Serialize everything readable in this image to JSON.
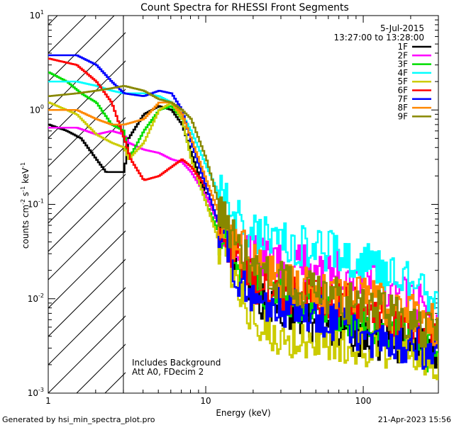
{
  "chart_data": {
    "type": "line",
    "title": "Count Spectra for RHESSI Front Segments",
    "xlabel": "Energy (keV)",
    "ylabel_main": "counts cm",
    "ylabel_sup1": "-2",
    "ylabel_mid": " s",
    "ylabel_sup2": "-1",
    "ylabel_mid2": " keV",
    "ylabel_sup3": "-1",
    "x_scale": "log",
    "y_scale": "log",
    "xlim": [
      1,
      300
    ],
    "ylim": [
      0.001,
      10
    ],
    "x_ticks": [
      {
        "value": 1,
        "label": "1"
      },
      {
        "value": 10,
        "label": "10"
      },
      {
        "value": 100,
        "label": "100"
      }
    ],
    "y_ticks": [
      {
        "value": 10,
        "base": "10",
        "exp": "1"
      },
      {
        "value": 1,
        "base": "10",
        "exp": "0"
      },
      {
        "value": 0.1,
        "base": "10",
        "exp": "-1"
      },
      {
        "value": 0.01,
        "base": "10",
        "exp": "-2"
      },
      {
        "value": 0.001,
        "base": "10",
        "exp": "-3"
      }
    ],
    "date": "5-Jul-2015",
    "time_range": "13:27:00 to 13:28:00",
    "annotation_line1": "Includes Background",
    "annotation_line2": "Att A0, FDecim 2",
    "footer_left": "Generated by hsi_min_spectra_plot.pro",
    "footer_right": "21-Apr-2023 15:56",
    "shaded_region": {
      "from": 1,
      "to": 3,
      "note": "hatched attenuated region below 3 keV"
    },
    "legend": [
      {
        "name": "1F",
        "color": "#000000"
      },
      {
        "name": "2F",
        "color": "#ff00ff"
      },
      {
        "name": "3F",
        "color": "#00dd00"
      },
      {
        "name": "4F",
        "color": "#00ffff"
      },
      {
        "name": "5F",
        "color": "#cccc00"
      },
      {
        "name": "6F",
        "color": "#ff0000"
      },
      {
        "name": "7F",
        "color": "#0000ff"
      },
      {
        "name": "8F",
        "color": "#ff8800"
      },
      {
        "name": "9F",
        "color": "#888800"
      }
    ],
    "series": [
      {
        "name": "1F",
        "color": "#000000",
        "points": [
          [
            1.0,
            0.7
          ],
          [
            1.3,
            0.6
          ],
          [
            1.6,
            0.5
          ],
          [
            2.0,
            0.3
          ],
          [
            2.3,
            0.22
          ],
          [
            3.0,
            0.22
          ],
          [
            3.2,
            0.5
          ],
          [
            4.0,
            0.9
          ],
          [
            5.0,
            1.1
          ],
          [
            6.0,
            1.0
          ],
          [
            7.0,
            0.7
          ],
          [
            8.0,
            0.35
          ],
          [
            10,
            0.12
          ],
          [
            12,
            0.06
          ],
          [
            15,
            0.03
          ],
          [
            20,
            0.012
          ],
          [
            30,
            0.007
          ],
          [
            50,
            0.005
          ],
          [
            100,
            0.004
          ],
          [
            200,
            0.003
          ],
          [
            300,
            0.003
          ]
        ]
      },
      {
        "name": "2F",
        "color": "#ff00ff",
        "points": [
          [
            1.0,
            0.65
          ],
          [
            1.5,
            0.65
          ],
          [
            2.0,
            0.55
          ],
          [
            2.5,
            0.6
          ],
          [
            3.0,
            0.55
          ],
          [
            3.2,
            0.45
          ],
          [
            4.0,
            0.38
          ],
          [
            5.0,
            0.35
          ],
          [
            6.0,
            0.3
          ],
          [
            7.0,
            0.28
          ],
          [
            8.0,
            0.22
          ],
          [
            10,
            0.12
          ],
          [
            12,
            0.06
          ],
          [
            15,
            0.04
          ],
          [
            20,
            0.03
          ],
          [
            30,
            0.022
          ],
          [
            50,
            0.022
          ],
          [
            100,
            0.018
          ],
          [
            200,
            0.01
          ],
          [
            300,
            0.006
          ]
        ]
      },
      {
        "name": "3F",
        "color": "#00dd00",
        "points": [
          [
            1.0,
            2.5
          ],
          [
            1.3,
            2.0
          ],
          [
            1.6,
            1.5
          ],
          [
            2.0,
            1.2
          ],
          [
            2.5,
            0.7
          ],
          [
            3.0,
            0.6
          ],
          [
            3.2,
            0.3
          ],
          [
            4.0,
            0.6
          ],
          [
            5.0,
            1.0
          ],
          [
            6.0,
            1.1
          ],
          [
            7.0,
            0.8
          ],
          [
            8.0,
            0.3
          ],
          [
            10,
            0.1
          ],
          [
            12,
            0.05
          ],
          [
            15,
            0.025
          ],
          [
            20,
            0.015
          ],
          [
            30,
            0.01
          ],
          [
            50,
            0.008
          ],
          [
            100,
            0.005
          ],
          [
            200,
            0.004
          ],
          [
            300,
            0.002
          ]
        ]
      },
      {
        "name": "4F",
        "color": "#00ffff",
        "points": [
          [
            1.0,
            2.0
          ],
          [
            1.5,
            2.0
          ],
          [
            2.0,
            1.8
          ],
          [
            2.5,
            1.6
          ],
          [
            3.0,
            1.5
          ],
          [
            4.0,
            1.5
          ],
          [
            5.0,
            1.4
          ],
          [
            6.0,
            1.2
          ],
          [
            7.0,
            0.9
          ],
          [
            8.0,
            0.6
          ],
          [
            10,
            0.25
          ],
          [
            12,
            0.13
          ],
          [
            15,
            0.08
          ],
          [
            20,
            0.05
          ],
          [
            30,
            0.04
          ],
          [
            50,
            0.035
          ],
          [
            100,
            0.025
          ],
          [
            200,
            0.015
          ],
          [
            300,
            0.007
          ]
        ]
      },
      {
        "name": "5F",
        "color": "#cccc00",
        "points": [
          [
            1.0,
            1.2
          ],
          [
            1.5,
            0.9
          ],
          [
            2.0,
            0.55
          ],
          [
            2.5,
            0.45
          ],
          [
            3.0,
            0.4
          ],
          [
            3.2,
            0.3
          ],
          [
            4.0,
            0.45
          ],
          [
            5.0,
            1.0
          ],
          [
            6.0,
            1.2
          ],
          [
            7.0,
            0.8
          ],
          [
            8.0,
            0.3
          ],
          [
            10,
            0.1
          ],
          [
            12,
            0.04
          ],
          [
            15,
            0.015
          ],
          [
            20,
            0.006
          ],
          [
            30,
            0.004
          ],
          [
            50,
            0.004
          ],
          [
            100,
            0.003
          ],
          [
            200,
            0.003
          ],
          [
            300,
            0.002
          ]
        ]
      },
      {
        "name": "6F",
        "color": "#ff0000",
        "points": [
          [
            1.0,
            3.5
          ],
          [
            1.5,
            3.0
          ],
          [
            2.0,
            2.0
          ],
          [
            2.5,
            1.2
          ],
          [
            3.0,
            0.5
          ],
          [
            3.3,
            0.3
          ],
          [
            4.0,
            0.18
          ],
          [
            5.0,
            0.2
          ],
          [
            6.0,
            0.25
          ],
          [
            7.0,
            0.3
          ],
          [
            8.0,
            0.25
          ],
          [
            10,
            0.15
          ],
          [
            12,
            0.06
          ],
          [
            15,
            0.03
          ],
          [
            20,
            0.015
          ],
          [
            30,
            0.012
          ],
          [
            50,
            0.01
          ],
          [
            100,
            0.008
          ],
          [
            200,
            0.005
          ],
          [
            300,
            0.004
          ]
        ]
      },
      {
        "name": "7F",
        "color": "#0000ff",
        "points": [
          [
            1.0,
            3.8
          ],
          [
            1.5,
            3.8
          ],
          [
            2.0,
            3.0
          ],
          [
            2.5,
            2.0
          ],
          [
            3.0,
            1.5
          ],
          [
            4.0,
            1.4
          ],
          [
            5.0,
            1.6
          ],
          [
            6.0,
            1.5
          ],
          [
            7.0,
            1.0
          ],
          [
            8.0,
            0.45
          ],
          [
            10,
            0.15
          ],
          [
            12,
            0.06
          ],
          [
            15,
            0.02
          ],
          [
            20,
            0.01
          ],
          [
            30,
            0.008
          ],
          [
            50,
            0.007
          ],
          [
            100,
            0.004
          ],
          [
            200,
            0.003
          ],
          [
            300,
            0.003
          ]
        ]
      },
      {
        "name": "8F",
        "color": "#ff8800",
        "points": [
          [
            1.0,
            1.0
          ],
          [
            1.5,
            1.0
          ],
          [
            2.0,
            0.8
          ],
          [
            2.5,
            0.7
          ],
          [
            3.0,
            0.7
          ],
          [
            4.0,
            0.8
          ],
          [
            5.0,
            1.2
          ],
          [
            6.0,
            1.2
          ],
          [
            7.0,
            0.9
          ],
          [
            8.0,
            0.5
          ],
          [
            10,
            0.18
          ],
          [
            12,
            0.08
          ],
          [
            15,
            0.04
          ],
          [
            20,
            0.025
          ],
          [
            30,
            0.015
          ],
          [
            50,
            0.012
          ],
          [
            100,
            0.01
          ],
          [
            200,
            0.007
          ],
          [
            300,
            0.005
          ]
        ]
      },
      {
        "name": "9F",
        "color": "#888800",
        "points": [
          [
            1.0,
            1.4
          ],
          [
            1.5,
            1.5
          ],
          [
            2.0,
            1.6
          ],
          [
            2.5,
            1.7
          ],
          [
            3.0,
            1.8
          ],
          [
            4.0,
            1.6
          ],
          [
            5.0,
            1.3
          ],
          [
            6.0,
            1.2
          ],
          [
            7.0,
            1.0
          ],
          [
            8.0,
            0.8
          ],
          [
            10,
            0.3
          ],
          [
            12,
            0.1
          ],
          [
            15,
            0.04
          ],
          [
            20,
            0.02
          ],
          [
            30,
            0.015
          ],
          [
            50,
            0.012
          ],
          [
            100,
            0.008
          ],
          [
            200,
            0.006
          ],
          [
            300,
            0.004
          ]
        ]
      }
    ]
  }
}
